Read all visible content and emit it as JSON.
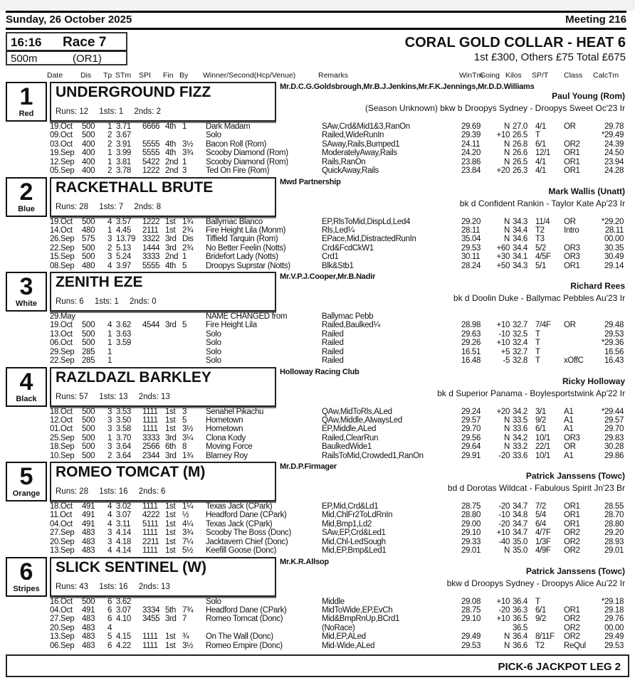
{
  "header": {
    "date": "Sunday, 26 October 2025",
    "meeting": "Meeting 216"
  },
  "race": {
    "time": "16:16",
    "race": "Race 7",
    "distance": "500m",
    "grade": "(OR1)",
    "title": "CORAL GOLD COLLAR - HEAT 6",
    "prize": "1st £300, Others £75 Total £675"
  },
  "columns": [
    "Date",
    "Dis",
    "Tp",
    "STm",
    "SPI",
    "Fin",
    "By",
    "Winner/Second(Hcp/Venue)",
    "Remarks",
    "WinTm",
    "Going",
    "Kilos",
    "SP/T",
    "Class",
    "CalcTm"
  ],
  "runners": [
    {
      "trap": "1",
      "colour": "Red",
      "name": "UNDERGROUND FIZZ",
      "runs": "Runs: 12",
      "firsts": "1sts: 1",
      "seconds": "2nds: 2",
      "owner": "Mr.D.C.G.Goldsbrough,Mr.B.J.Jenkins,Mr.F.K.Jennings,Mr.D.D.Williams",
      "trainer": "Paul Young (Rom)",
      "breeding": "(Season Unknown) bkw b Droopys Sydney - Droopys Sweet Oc'23 Ir",
      "form": [
        [
          "19.Oct",
          "500",
          "1",
          "3.71",
          "6666",
          "4th",
          "1",
          "Dark Madam",
          "SAw,Crd&Mid1&3,RanOn",
          "29.69",
          "N",
          "27.0",
          "4/1",
          "OR",
          "29.78"
        ],
        [
          "09.Oct",
          "500",
          "2",
          "3.67",
          "",
          "",
          "",
          "Solo",
          "Railed,WideRunIn",
          "29.39",
          "+10",
          "26.5",
          "T",
          "",
          "*29.49"
        ],
        [
          "03.Oct",
          "400",
          "2",
          "3.91",
          "5555",
          "4th",
          "3½",
          "Bacon Roll (Rom)",
          "SAway,Rails,Bumped1",
          "24.11",
          "N",
          "26.8",
          "6/1",
          "OR2",
          "24.39"
        ],
        [
          "19.Sep",
          "400",
          "1",
          "3.99",
          "5555",
          "4th",
          "3¾",
          "Scooby Diamond (Rom)",
          "ModeratelyAway,Rails",
          "24.20",
          "N",
          "26.6",
          "12/1",
          "OR1",
          "24.50"
        ],
        [
          "12.Sep",
          "400",
          "1",
          "3.81",
          "5422",
          "2nd",
          "1",
          "Scooby Diamond (Rom)",
          "Rails,RanOn",
          "23.86",
          "N",
          "26.5",
          "4/1",
          "OR1",
          "23.94"
        ],
        [
          "05.Sep",
          "400",
          "2",
          "3.78",
          "1222",
          "2nd",
          "3",
          "Ted On Fire (Rom)",
          "QuickAway,Rails",
          "23.84",
          "+20",
          "26.3",
          "4/1",
          "OR1",
          "24.28"
        ]
      ]
    },
    {
      "trap": "2",
      "colour": "Blue",
      "name": "RACKETHALL BRUTE",
      "runs": "Runs: 28",
      "firsts": "1sts: 7",
      "seconds": "2nds: 8",
      "owner": "Mwd Partnership",
      "trainer": "Mark Wallis (Unatt)",
      "breeding": "bk d Confident Rankin - Taylor Kate Ap'23 Ir",
      "form": [
        [
          "19.Oct",
          "500",
          "4",
          "3.57",
          "1222",
          "1st",
          "1¾",
          "Ballymac Blanco",
          "EP,RlsToMid,DispLd,Led4",
          "29.20",
          "N",
          "34.3",
          "11/4",
          "OR",
          "*29.20"
        ],
        [
          "14.Oct",
          "480",
          "1",
          "4.45",
          "2111",
          "1st",
          "2¾",
          "Fire Height Lila (Monm)",
          "Rls,Led¼",
          "28.11",
          "N",
          "34.4",
          "T2",
          "Intro",
          "28.11"
        ],
        [
          "26.Sep",
          "575",
          "3",
          "13.79",
          "3322",
          "3rd",
          "Dis",
          "Tiffield Tarquin (Rom)",
          "EPace,Mid,DistractedRunIn",
          "35.04",
          "N",
          "34.6",
          "T3",
          "",
          "00.00"
        ],
        [
          "22.Sep",
          "500",
          "2",
          "5.13",
          "1444",
          "3rd",
          "2¾",
          "No Better Feelin (Notts)",
          "Crd&FcdCkW1",
          "29.53",
          "+60",
          "34.4",
          "5/2",
          "OR3",
          "30.35"
        ],
        [
          "15.Sep",
          "500",
          "3",
          "5.24",
          "3333",
          "2nd",
          "1",
          "Bridefort Lady (Notts)",
          "Crd1",
          "30.11",
          "+30",
          "34.1",
          "4/5F",
          "OR3",
          "30.49"
        ],
        [
          "08.Sep",
          "480",
          "4",
          "3.97",
          "5555",
          "4th",
          "5",
          "Droopys Suprstar (Notts)",
          "Blk&Stb1",
          "28.24",
          "+50",
          "34.3",
          "5/1",
          "OR1",
          "29.14"
        ]
      ]
    },
    {
      "trap": "3",
      "colour": "White",
      "name": "ZENITH EZE",
      "runs": "Runs: 6",
      "firsts": "1sts: 1",
      "seconds": "2nds: 0",
      "owner": "Mr.V.P.J.Cooper,Mr.B.Nadir",
      "trainer": "Richard Rees",
      "breeding": "bk d Doolin Duke - Ballymac Pebbles Au'23 Ir",
      "form": [
        [
          "29.May",
          "",
          "",
          "",
          "",
          "",
          "",
          "NAME CHANGED from",
          "Ballymac Pebb",
          "",
          "",
          "",
          "",
          "",
          ""
        ],
        [
          "19.Oct",
          "500",
          "4",
          "3.62",
          "4544",
          "3rd",
          "5",
          "Fire Height Lila",
          "Railed,Baulked¼",
          "28.98",
          "+10",
          "32.7",
          "7/4F",
          "OR",
          "29.48"
        ],
        [
          "13.Oct",
          "500",
          "1",
          "3.63",
          "",
          "",
          "",
          "Solo",
          "Railed",
          "29.63",
          "-10",
          "32.5",
          "T",
          "",
          "29.53"
        ],
        [
          "06.Oct",
          "500",
          "1",
          "3.59",
          "",
          "",
          "",
          "Solo",
          "Railed",
          "29.26",
          "+10",
          "32.4",
          "T",
          "",
          "*29.36"
        ],
        [
          "29.Sep",
          "285",
          "1",
          "",
          "",
          "",
          "",
          "Solo",
          "Railed",
          "16.51",
          "+5",
          "32.7",
          "T",
          "",
          "16.56"
        ],
        [
          "22.Sep",
          "285",
          "1",
          "",
          "",
          "",
          "",
          "Solo",
          "Railed",
          "16.48",
          "-5",
          "32.8",
          "T",
          "xOffC",
          "16.43"
        ]
      ]
    },
    {
      "trap": "4",
      "colour": "Black",
      "name": "RAZLDAZL BARKLEY",
      "runs": "Runs: 57",
      "firsts": "1sts: 13",
      "seconds": "2nds: 13",
      "owner": "Holloway Racing Club",
      "trainer": "Ricky Holloway",
      "breeding": "bk d Superior Panama - Boylesportstwink Ap'22 Ir",
      "form": [
        [
          "18.Oct",
          "500",
          "3",
          "3.53",
          "1111",
          "1st",
          "3",
          "Senahel Pikachu",
          "QAw,MidToRls,ALed",
          "29.24",
          "+20",
          "34.2",
          "3/1",
          "A1",
          "*29.44"
        ],
        [
          "12.Oct",
          "500",
          "3",
          "3.50",
          "1111",
          "1st",
          "5",
          "Hometown",
          "QAw,Middle,AlwaysLed",
          "29.57",
          "N",
          "33.5",
          "9/2",
          "A1",
          "29.57"
        ],
        [
          "01.Oct",
          "500",
          "3",
          "3.58",
          "1111",
          "1st",
          "3½",
          "Hometown",
          "EP,Middle,ALed",
          "29.70",
          "N",
          "33.6",
          "6/1",
          "A1",
          "29.70"
        ],
        [
          "25.Sep",
          "500",
          "1",
          "3.70",
          "3333",
          "3rd",
          "3¼",
          "Clona Kody",
          "Railed,ClearRun",
          "29.56",
          "N",
          "34.2",
          "10/1",
          "OR3",
          "29.83"
        ],
        [
          "18.Sep",
          "500",
          "3",
          "3.64",
          "2566",
          "6th",
          "8",
          "Moving Force",
          "BaulkedWide1",
          "29.64",
          "N",
          "33.2",
          "22/1",
          "OR",
          "30.28"
        ],
        [
          "10.Sep",
          "500",
          "2",
          "3.64",
          "2344",
          "3rd",
          "1¾",
          "Blarney Roy",
          "RailsToMid,Crowded1,RanOn",
          "29.91",
          "-20",
          "33.6",
          "10/1",
          "A1",
          "29.86"
        ]
      ]
    },
    {
      "trap": "5",
      "colour": "Orange",
      "name": "ROMEO TOMCAT (M)",
      "runs": "Runs: 28",
      "firsts": "1sts: 16",
      "seconds": "2nds: 6",
      "owner": "Mr.D.P.Firmager",
      "trainer": "Patrick Janssens (Towc)",
      "breeding": "bd d Dorotas Wildcat - Fabulous Spirit Jn'23 Br",
      "form": [
        [
          "18.Oct",
          "491",
          "4",
          "3.02",
          "1111",
          "1st",
          "1¼",
          "Texas Jack (CPark)",
          "EP,Mid,Crd&Ld1",
          "28.75",
          "-20",
          "34.7",
          "7/2",
          "OR1",
          "28.55"
        ],
        [
          "11.Oct",
          "491",
          "4",
          "3.07",
          "4222",
          "1st",
          "½",
          "Headford Dane (CPark)",
          "Mid,ChlFr2ToLdRnIn",
          "28.80",
          "-10",
          "34.8",
          "5/4",
          "OR1",
          "28.70"
        ],
        [
          "04.Oct",
          "491",
          "4",
          "3.11",
          "5111",
          "1st",
          "4¼",
          "Texas Jack (CPark)",
          "Mid,Bmp1,Ld2",
          "29.00",
          "-20",
          "34.7",
          "6/4",
          "OR1",
          "28.80"
        ],
        [
          "27.Sep",
          "483",
          "3",
          "4.14",
          "1111",
          "1st",
          "3¾",
          "Scooby The Boss (Donc)",
          "SAw,EP,Crd&Led1",
          "29.10",
          "+10",
          "34.7",
          "4/7F",
          "OR2",
          "29.20"
        ],
        [
          "20.Sep",
          "483",
          "3",
          "4.18",
          "2211",
          "1st",
          "7¼",
          "Jacktavern Chief (Donc)",
          "Mid,Chl-LedSough",
          "29.33",
          "-40",
          "35.0",
          "1/3F",
          "OR2",
          "28.93"
        ],
        [
          "13.Sep",
          "483",
          "4",
          "4.14",
          "1111",
          "1st",
          "5½",
          "Keefill Goose (Donc)",
          "Mid,EP,Bmp&Led1",
          "29.01",
          "N",
          "35.0",
          "4/9F",
          "OR2",
          "29.01"
        ]
      ]
    },
    {
      "trap": "6",
      "colour": "Stripes",
      "name": "SLICK SENTINEL (W)",
      "runs": "Runs: 43",
      "firsts": "1sts: 16",
      "seconds": "2nds: 13",
      "owner": "Mr.K.R.Allsop",
      "trainer": "Patrick Janssens (Towc)",
      "breeding": "bkw d Droopys Sydney - Droopys Alice Au'22 Ir",
      "form": [
        [
          "16.Oct",
          "500",
          "6",
          "3.62",
          "",
          "",
          "",
          "Solo",
          "Middle",
          "29.08",
          "+10",
          "36.4",
          "T",
          "",
          "*29.18"
        ],
        [
          "04.Oct",
          "491",
          "6",
          "3.07",
          "3334",
          "5th",
          "7¾",
          "Headford Dane (CPark)",
          "MidToWide,EP,EvCh",
          "28.75",
          "-20",
          "36.3",
          "6/1",
          "OR1",
          "29.18"
        ],
        [
          "27.Sep",
          "483",
          "6",
          "4.10",
          "3455",
          "3rd",
          "7",
          "Romeo Tomcat (Donc)",
          "Mid&BmpRnUp,BCrd1",
          "29.10",
          "+10",
          "36.5",
          "9/2",
          "OR2",
          "29.76"
        ],
        [
          "20.Sep",
          "483",
          "4",
          "",
          "",
          "",
          "",
          "",
          "(NoRace)",
          "",
          "",
          "36.5",
          "",
          "OR2",
          "00.00"
        ],
        [
          "13.Sep",
          "483",
          "5",
          "4.15",
          "1111",
          "1st",
          "¾",
          "On The Wall (Donc)",
          "Mid,EP,ALed",
          "29.49",
          "N",
          "36.4",
          "8/11F",
          "OR2",
          "29.49"
        ],
        [
          "06.Sep",
          "483",
          "6",
          "4.22",
          "1111",
          "1st",
          "3½",
          "Romeo Empire (Donc)",
          "Mid-Wide,ALed",
          "29.53",
          "N",
          "36.6",
          "T2",
          "ReQul",
          "29.53"
        ]
      ]
    }
  ],
  "footer": "PICK-6 JACKPOT LEG 2"
}
